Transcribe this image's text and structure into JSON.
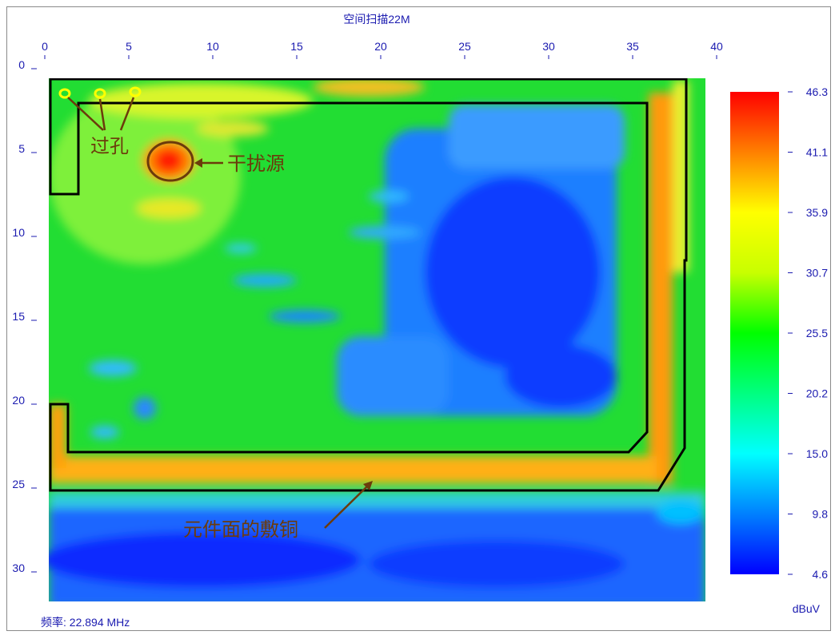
{
  "chart_data": {
    "type": "heatmap",
    "title": "空间扫描22M",
    "frequency_label": "频率: 22.894 MHz",
    "unit": "dBuV",
    "x_ticks": [
      0,
      5,
      10,
      15,
      20,
      25,
      30,
      35,
      40
    ],
    "y_ticks": [
      0,
      5,
      10,
      15,
      20,
      25,
      30
    ],
    "x_range": [
      0,
      40
    ],
    "y_range": [
      0,
      32
    ],
    "grid": false,
    "colorbar": {
      "position": "right",
      "ticks": [
        "46.3",
        "41.1",
        "35.9",
        "30.7",
        "25.5",
        "20.2",
        "15.0",
        "9.8",
        "4.6"
      ],
      "min": 4.6,
      "max": 46.3,
      "colors": [
        "#0000ff",
        "#0080ff",
        "#00ffff",
        "#00ff80",
        "#00ff00",
        "#c8ff00",
        "#ffff00",
        "#ff8000",
        "#ff0000"
      ]
    },
    "outline_color": "#000000",
    "via_color": "#ffff00",
    "annotations": [
      {
        "text": "过孔"
      },
      {
        "text": "干扰源"
      },
      {
        "text": "元件面的敷铜"
      }
    ],
    "annotation_color": "#6b3b0b"
  }
}
